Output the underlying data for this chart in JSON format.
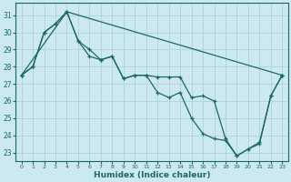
{
  "xlabel": "Humidex (Indice chaleur)",
  "bg_color": "#cce8f0",
  "grid_color": "#aacfc8",
  "line_color": "#1a6b5e",
  "xlim": [
    -0.5,
    23.5
  ],
  "ylim": [
    22.5,
    31.7
  ],
  "xticks": [
    0,
    1,
    2,
    3,
    4,
    5,
    6,
    7,
    8,
    9,
    10,
    11,
    12,
    13,
    14,
    15,
    16,
    17,
    18,
    19,
    20,
    21,
    22,
    23
  ],
  "yticks": [
    23,
    24,
    25,
    26,
    27,
    28,
    29,
    30,
    31
  ],
  "series1_x": [
    0,
    4,
    23
  ],
  "series1_y": [
    27.5,
    31.2,
    27.5
  ],
  "series2_x": [
    0,
    1,
    2,
    3,
    4,
    5,
    6,
    7,
    8,
    9,
    10,
    11,
    12,
    13,
    14,
    15,
    16,
    17,
    18,
    19,
    20,
    21,
    22,
    23
  ],
  "series2_y": [
    27.5,
    28.0,
    30.0,
    30.5,
    31.2,
    29.5,
    29.0,
    28.4,
    28.6,
    27.3,
    27.5,
    27.5,
    27.4,
    27.4,
    27.4,
    26.2,
    26.3,
    26.0,
    23.8,
    22.8,
    23.2,
    23.6,
    26.3,
    27.5
  ],
  "series3_x": [
    0,
    1,
    2,
    3,
    4,
    5,
    6,
    7,
    8,
    9,
    10,
    11,
    12,
    13,
    14,
    15,
    16,
    17,
    18,
    19,
    20,
    21,
    22,
    23
  ],
  "series3_y": [
    27.5,
    28.0,
    30.0,
    30.5,
    31.2,
    29.5,
    28.6,
    28.4,
    28.6,
    27.3,
    27.5,
    27.5,
    26.5,
    26.2,
    26.5,
    25.0,
    24.1,
    23.8,
    23.7,
    22.8,
    23.2,
    23.5,
    26.3,
    27.5
  ]
}
